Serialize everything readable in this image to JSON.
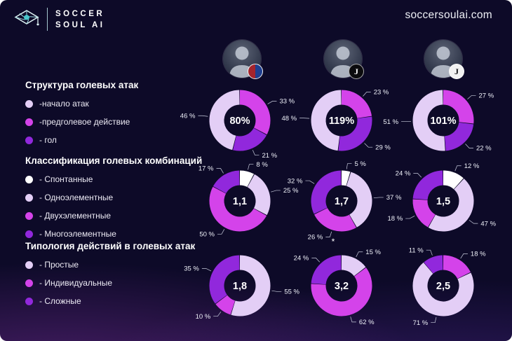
{
  "header": {
    "brand_line1": "SOCCER",
    "brand_line2": "SOUL AI",
    "website": "soccersoulai.com"
  },
  "colors": {
    "bg": "#0d0a28",
    "light": "#e3cef6",
    "white": "#ffffff",
    "magenta": "#d443ea",
    "purple": "#9128dc",
    "accent_teal": "#49c5cb",
    "leader_line": "#c9cdde"
  },
  "columns": [
    {
      "club": "Bologna"
    },
    {
      "club": "Juventus",
      "badge_letter": "J"
    },
    {
      "club": "Juventus",
      "badge_letter": "J"
    }
  ],
  "sections": [
    {
      "title": "Структура голевых атак",
      "legend": [
        {
          "label": "-начало атак",
          "color": "light"
        },
        {
          "label": "-предголевое действие",
          "color": "magenta"
        },
        {
          "label": "- гол",
          "color": "purple"
        }
      ]
    },
    {
      "title": "Классификация голевых комбинаций",
      "legend": [
        {
          "label": "- Спонтанные",
          "color": "white"
        },
        {
          "label": "- Одноэлементные",
          "color": "light"
        },
        {
          "label": "- Двухэлементные",
          "color": "magenta"
        },
        {
          "label": "- Многоэлементные",
          "color": "purple"
        }
      ]
    },
    {
      "title": "Типология действий в голевых атак",
      "legend": [
        {
          "label": "- Простые",
          "color": "light"
        },
        {
          "label": "- Индивидуальные",
          "color": "magenta"
        },
        {
          "label": "- Сложные",
          "color": "purple"
        }
      ]
    }
  ],
  "chart_data": [
    {
      "id": "r1c1",
      "type": "pie",
      "section": "Структура голевых атак",
      "center": "80%",
      "segments": [
        {
          "value": 33,
          "label": "33 %",
          "color": "magenta"
        },
        {
          "value": 21,
          "label": "21 %",
          "color": "purple"
        },
        {
          "value": 46,
          "label": "46 %",
          "color": "light"
        }
      ]
    },
    {
      "id": "r1c2",
      "type": "pie",
      "section": "Структура голевых атак",
      "center": "119%",
      "segments": [
        {
          "value": 23,
          "label": "23 %",
          "color": "magenta"
        },
        {
          "value": 29,
          "label": "29 %",
          "color": "purple"
        },
        {
          "value": 48,
          "label": "48 %",
          "color": "light"
        }
      ]
    },
    {
      "id": "r1c3",
      "type": "pie",
      "section": "Структура голевых атак",
      "center": "101%",
      "segments": [
        {
          "value": 27,
          "label": "27 %",
          "color": "magenta"
        },
        {
          "value": 22,
          "label": "22 %",
          "color": "purple"
        },
        {
          "value": 51,
          "label": "51 %",
          "color": "light"
        }
      ]
    },
    {
      "id": "r2c1",
      "type": "pie",
      "section": "Классификация голевых комбинаций",
      "center": "1,1",
      "segments": [
        {
          "value": 8,
          "label": "8 %",
          "color": "white"
        },
        {
          "value": 25,
          "label": "25 %",
          "color": "light"
        },
        {
          "value": 50,
          "label": "50 %",
          "color": "magenta"
        },
        {
          "value": 17,
          "label": "17 %",
          "color": "purple"
        }
      ]
    },
    {
      "id": "r2c2",
      "type": "pie",
      "section": "Классификация голевых комбинаций",
      "center": "1,7",
      "footnote": "*",
      "segments": [
        {
          "value": 5,
          "label": "5 %",
          "color": "white"
        },
        {
          "value": 37,
          "label": "37 %",
          "color": "light"
        },
        {
          "value": 26,
          "label": "26 %",
          "color": "magenta"
        },
        {
          "value": 32,
          "label": "32 %",
          "color": "purple"
        }
      ]
    },
    {
      "id": "r2c3",
      "type": "pie",
      "section": "Классификация голевых комбинаций",
      "center": "1,5",
      "segments": [
        {
          "value": 12,
          "label": "12 %",
          "color": "white"
        },
        {
          "value": 47,
          "label": "47 %",
          "color": "light"
        },
        {
          "value": 18,
          "label": "18 %",
          "color": "magenta"
        },
        {
          "value": 24,
          "label": "24 %",
          "color": "purple"
        }
      ]
    },
    {
      "id": "r3c1",
      "type": "pie",
      "section": "Типология действий в голевых атак",
      "center": "1,8",
      "segments": [
        {
          "value": 55,
          "label": "55 %",
          "color": "light"
        },
        {
          "value": 10,
          "label": "10 %",
          "color": "magenta"
        },
        {
          "value": 35,
          "label": "35 %",
          "color": "purple"
        }
      ]
    },
    {
      "id": "r3c2",
      "type": "pie",
      "section": "Типология действий в голевых атак",
      "center": "3,2",
      "segments": [
        {
          "value": 15,
          "label": "15 %",
          "color": "light"
        },
        {
          "value": 62,
          "label": "62 %",
          "color": "magenta"
        },
        {
          "value": 24,
          "label": "24 %",
          "color": "purple"
        }
      ]
    },
    {
      "id": "r3c3",
      "type": "pie",
      "section": "Типология действий в голевых атак",
      "center": "2,5",
      "segments": [
        {
          "value": 18,
          "label": "18 %",
          "color": "magenta"
        },
        {
          "value": 71,
          "label": "71 %",
          "color": "light"
        },
        {
          "value": 11,
          "label": "11 %",
          "color": "purple"
        }
      ]
    }
  ]
}
